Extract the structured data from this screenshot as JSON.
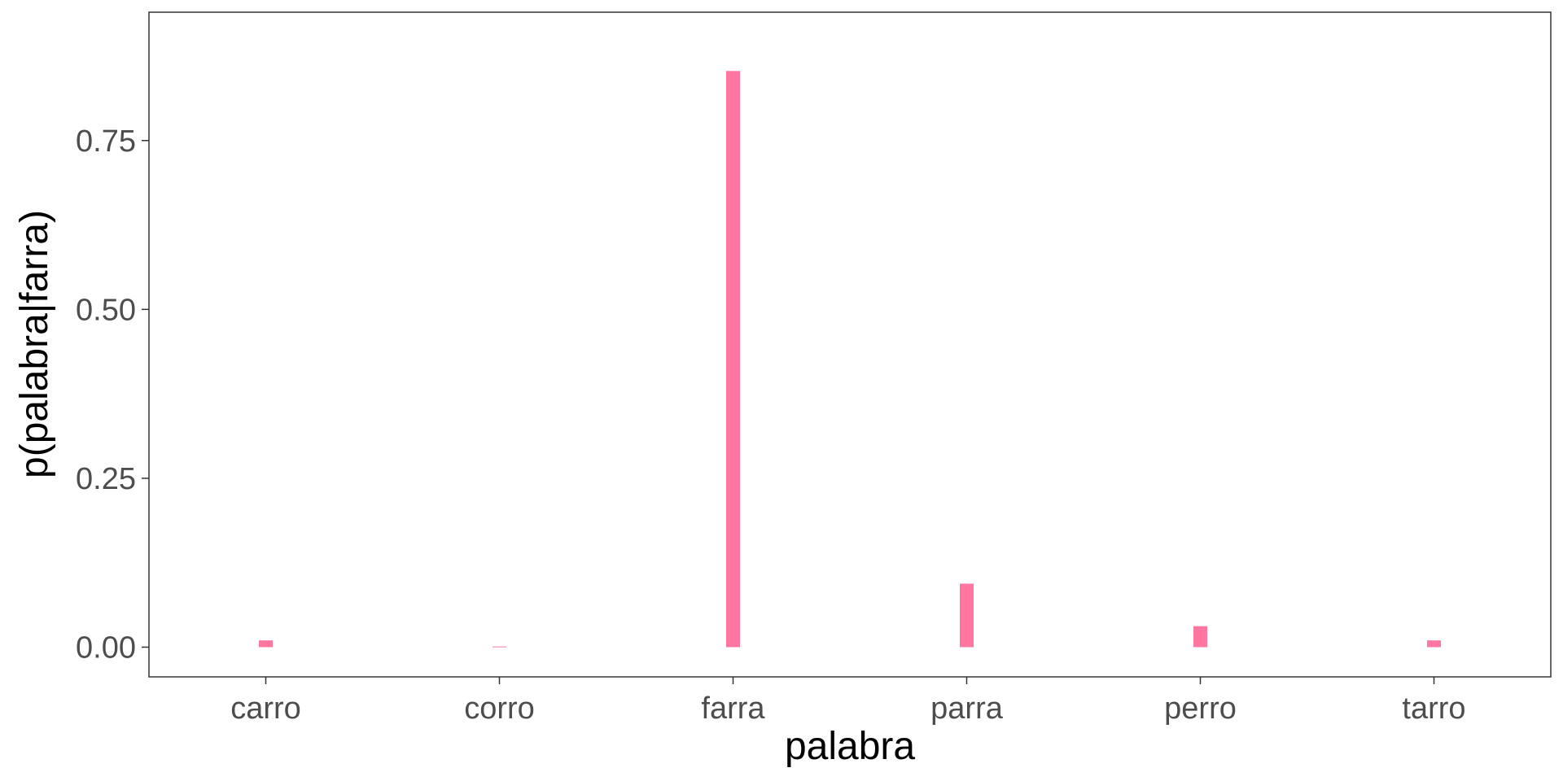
{
  "chart_data": {
    "type": "bar",
    "categories": [
      "carro",
      "corro",
      "farra",
      "parra",
      "perro",
      "tarro"
    ],
    "values": [
      0.01,
      0.001,
      0.853,
      0.094,
      0.031,
      0.01
    ],
    "xlabel": "palabra",
    "ylabel": "p(palabra|farra)",
    "ylim": [
      -0.044,
      0.94
    ],
    "yticks": [
      0.0,
      0.25,
      0.5,
      0.75
    ],
    "ytick_labels": [
      "0.00",
      "0.25",
      "0.50",
      "0.75"
    ],
    "bar_color": "#ff77a0",
    "grid": false,
    "legend": "none"
  }
}
